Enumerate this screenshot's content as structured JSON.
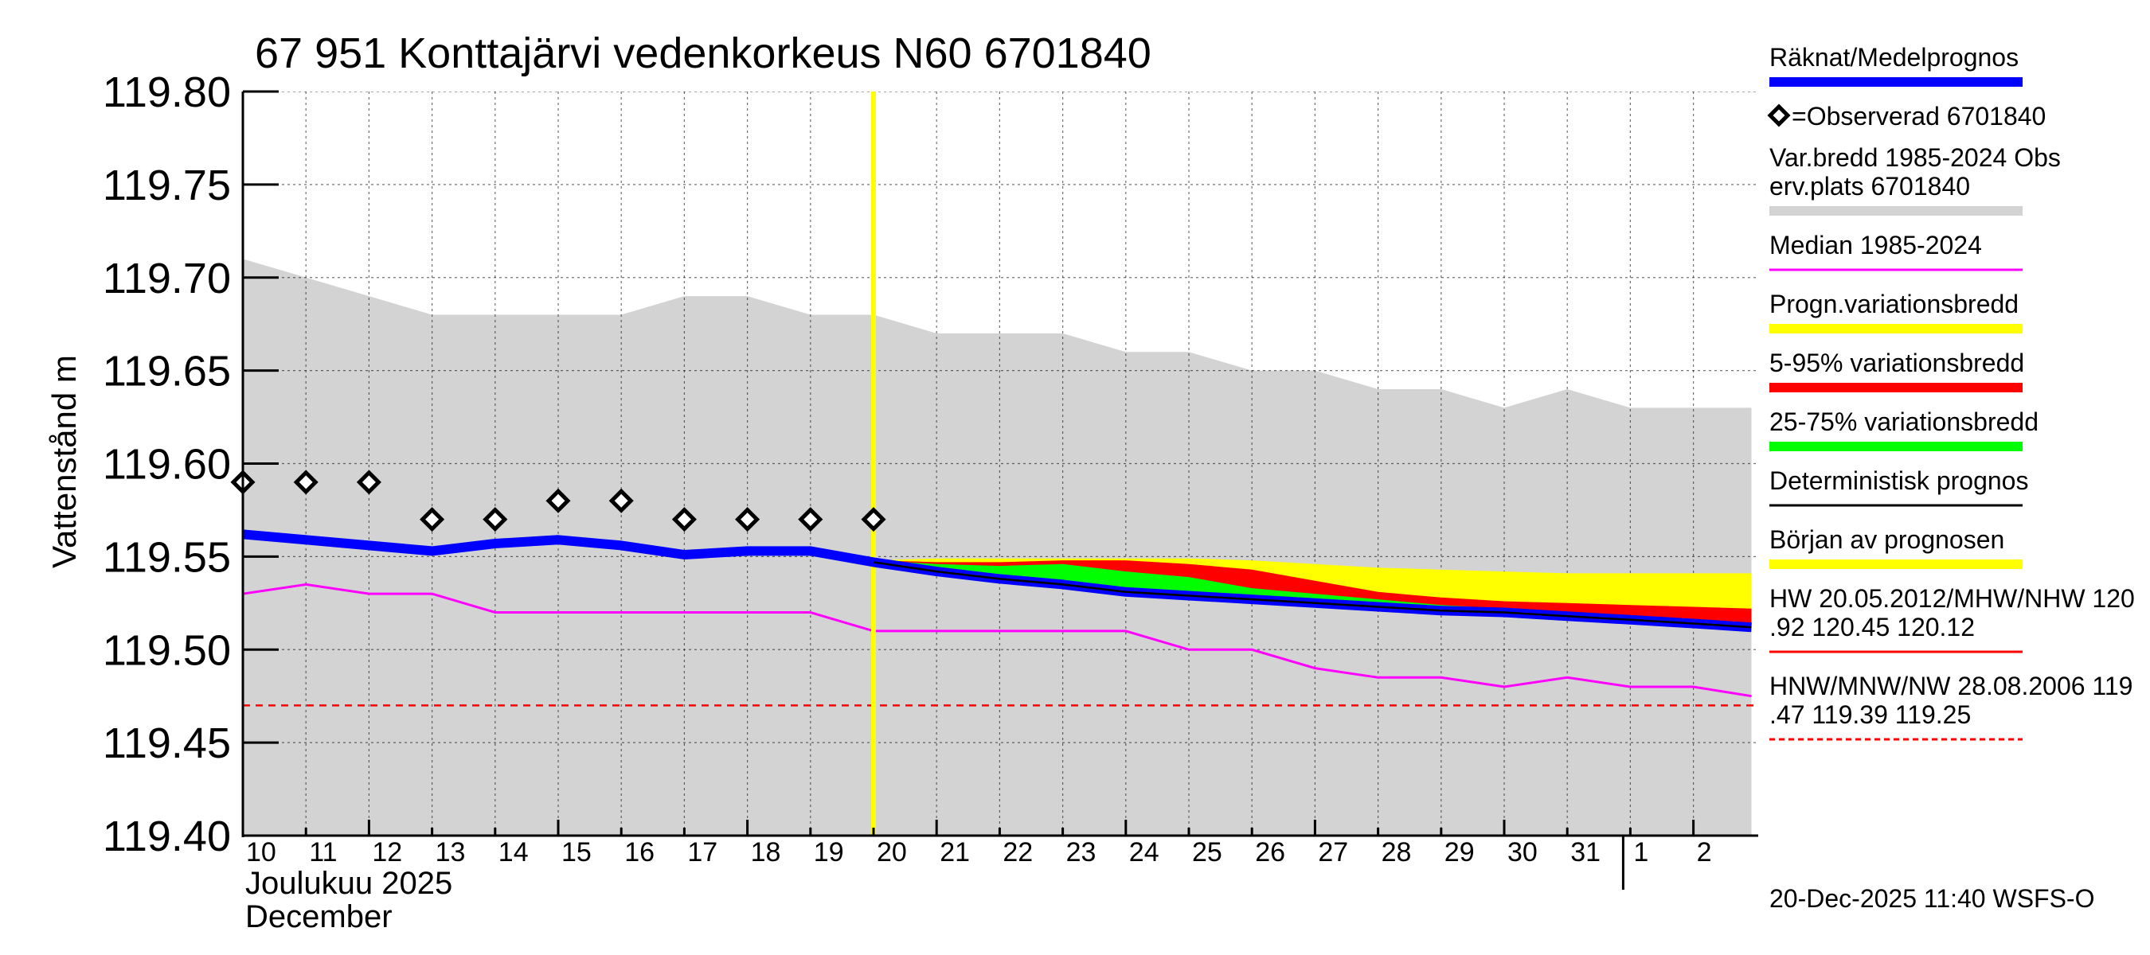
{
  "chart_data": {
    "type": "line",
    "title": "67 951 Konttajärvi vedenkorkeus N60 6701840",
    "ylabel": "Vattenstånd m",
    "ylim": [
      119.4,
      119.8
    ],
    "yticks": [
      "119.80",
      "119.75",
      "119.70",
      "119.65",
      "119.60",
      "119.55",
      "119.50",
      "119.45",
      "119.40"
    ],
    "x_labels": [
      "10",
      "11",
      "12",
      "13",
      "14",
      "15",
      "16",
      "17",
      "18",
      "19",
      "20",
      "21",
      "22",
      "23",
      "24",
      "25",
      "26",
      "27",
      "28",
      "29",
      "30",
      "31",
      "1",
      "2"
    ],
    "month_label_fi": "Joulukuu  2025",
    "month_label_sv": "December",
    "forecast_start": "20",
    "grid": true,
    "legend_position": "right",
    "series": [
      {
        "name": "Var.bredd 1985-2024   Obs erv.plats 6701840",
        "color": "#d3d3d3",
        "x": [
          10,
          11,
          12,
          13,
          14,
          15,
          16,
          17,
          18,
          19,
          20,
          21,
          22,
          23,
          24,
          25,
          26,
          27,
          28,
          29,
          30,
          31,
          32,
          33,
          33.92
        ],
        "upper": [
          119.71,
          119.7,
          119.69,
          119.68,
          119.68,
          119.68,
          119.68,
          119.69,
          119.69,
          119.68,
          119.68,
          119.67,
          119.67,
          119.67,
          119.66,
          119.66,
          119.65,
          119.65,
          119.64,
          119.64,
          119.63,
          119.64,
          119.63,
          119.63,
          119.63
        ],
        "lower": [
          119.4,
          119.4,
          119.4,
          119.4,
          119.4,
          119.4,
          119.4,
          119.4,
          119.4,
          119.4,
          119.4,
          119.4,
          119.4,
          119.4,
          119.4,
          119.4,
          119.4,
          119.4,
          119.4,
          119.4,
          119.4,
          119.4,
          119.4,
          119.4,
          119.4
        ]
      },
      {
        "name": "Progn.variationsbredd",
        "color": "#ffff00",
        "x": [
          20,
          21,
          22,
          23,
          24,
          25,
          26,
          27,
          28,
          29,
          30,
          31,
          32,
          33,
          33.92
        ],
        "upper": [
          119.548,
          119.549,
          119.549,
          119.549,
          119.549,
          119.549,
          119.548,
          119.546,
          119.544,
          119.543,
          119.542,
          119.541,
          119.541,
          119.541,
          119.541
        ],
        "lower": [
          119.547,
          119.542,
          119.538,
          119.534,
          119.53,
          119.528,
          119.525,
          119.523,
          119.521,
          119.519,
          119.518,
          119.516,
          119.514,
          119.512,
          119.51
        ]
      },
      {
        "name": "5-95% variationsbredd",
        "color": "#ff0000",
        "x": [
          20,
          21,
          22,
          23,
          24,
          25,
          26,
          27,
          28,
          29,
          30,
          31,
          32,
          33,
          33.92
        ],
        "upper": [
          119.548,
          119.547,
          119.547,
          119.548,
          119.548,
          119.546,
          119.543,
          119.537,
          119.531,
          119.528,
          119.526,
          119.525,
          119.524,
          119.523,
          119.522
        ],
        "lower": [
          119.547,
          119.542,
          119.538,
          119.534,
          119.53,
          119.528,
          119.525,
          119.523,
          119.521,
          119.519,
          119.518,
          119.516,
          119.514,
          119.512,
          119.51
        ]
      },
      {
        "name": "25-75% variationsbredd",
        "color": "#00ff00",
        "x": [
          20,
          21,
          22,
          23,
          24,
          25,
          26,
          27,
          28,
          29,
          30,
          31,
          32,
          33,
          33.92
        ],
        "upper": [
          119.548,
          119.546,
          119.545,
          119.546,
          119.542,
          119.539,
          119.533,
          119.53,
          119.527,
          119.524,
          119.522,
          119.52,
          119.518,
          119.516,
          119.513
        ],
        "lower": [
          119.547,
          119.542,
          119.538,
          119.534,
          119.53,
          119.528,
          119.525,
          119.523,
          119.521,
          119.519,
          119.518,
          119.516,
          119.514,
          119.512,
          119.51
        ]
      },
      {
        "name": "Median 1985-2024",
        "color": "#ff00ff",
        "x": [
          10,
          11,
          12,
          13,
          14,
          15,
          16,
          17,
          18,
          19,
          20,
          21,
          22,
          23,
          24,
          25,
          26,
          27,
          28,
          29,
          30,
          31,
          32,
          33,
          33.92
        ],
        "y": [
          119.53,
          119.535,
          119.53,
          119.53,
          119.52,
          119.52,
          119.52,
          119.52,
          119.52,
          119.52,
          119.51,
          119.51,
          119.51,
          119.51,
          119.51,
          119.5,
          119.5,
          119.49,
          119.485,
          119.485,
          119.48,
          119.485,
          119.48,
          119.48,
          119.475
        ]
      },
      {
        "name": "Räknat/Medelprognos",
        "color": "#0000ff",
        "x": [
          10,
          11,
          12,
          13,
          14,
          15,
          16,
          17,
          18,
          19,
          20,
          21,
          22,
          23,
          24,
          25,
          26,
          27,
          28,
          29,
          30,
          31,
          32,
          33,
          33.92
        ],
        "y": [
          119.562,
          119.559,
          119.556,
          119.553,
          119.557,
          119.559,
          119.556,
          119.551,
          119.553,
          119.553,
          119.547,
          119.542,
          119.538,
          119.535,
          119.531,
          119.529,
          119.527,
          119.525,
          119.523,
          119.521,
          119.52,
          119.518,
          119.516,
          119.514,
          119.512
        ]
      },
      {
        "name": "Deterministisk prognos",
        "color": "#000000",
        "x": [
          20,
          21,
          22,
          23,
          24,
          25,
          26,
          27,
          28,
          29,
          30,
          31,
          32,
          33,
          33.92
        ],
        "y": [
          119.547,
          119.542,
          119.538,
          119.535,
          119.531,
          119.529,
          119.527,
          119.525,
          119.523,
          119.521,
          119.52,
          119.518,
          119.516,
          119.514,
          119.512
        ]
      },
      {
        "name": "=Observerad 6701840",
        "color": "#000000",
        "x": [
          10,
          11,
          12,
          13,
          14,
          15,
          16,
          17,
          18,
          19,
          20
        ],
        "y": [
          119.59,
          119.59,
          119.59,
          119.57,
          119.57,
          119.58,
          119.58,
          119.57,
          119.57,
          119.57,
          119.57
        ]
      },
      {
        "name": "HNW/MNW/NW 28.08.2006 119.47 119.39 119.25",
        "color": "#ff0000",
        "y": 119.47
      }
    ]
  },
  "legend": [
    {
      "lines": [
        "Räknat/Medelprognos"
      ],
      "color": "#0000ff",
      "style": "thick"
    },
    {
      "lines": [
        "=Observerad 6701840"
      ],
      "color": "#000000",
      "style": "diamond"
    },
    {
      "lines": [
        "Var.bredd 1985-2024   Obs",
        "erv.plats 6701840"
      ],
      "color": "#d3d3d3",
      "style": "thick"
    },
    {
      "lines": [
        "Median 1985-2024"
      ],
      "color": "#ff00ff",
      "style": "thin"
    },
    {
      "lines": [
        "Progn.variationsbredd"
      ],
      "color": "#ffff00",
      "style": "thick"
    },
    {
      "lines": [
        "5-95% variationsbredd"
      ],
      "color": "#ff0000",
      "style": "thick"
    },
    {
      "lines": [
        "25-75% variationsbredd"
      ],
      "color": "#00ff00",
      "style": "thick"
    },
    {
      "lines": [
        "Deterministisk prognos"
      ],
      "color": "#000000",
      "style": "thin"
    },
    {
      "lines": [
        "Början av prognosen"
      ],
      "color": "#ffff00",
      "style": "thick"
    },
    {
      "lines": [
        "HW 20.05.2012/MHW/NHW 120",
        ".92 120.45 120.12"
      ],
      "color": "#ff0000",
      "style": "thin"
    },
    {
      "lines": [
        "HNW/MNW/NW 28.08.2006 119",
        ".47 119.39 119.25"
      ],
      "color": "#ff0000",
      "style": "dashed"
    }
  ],
  "footer": "20-Dec-2025 11:40 WSFS-O"
}
